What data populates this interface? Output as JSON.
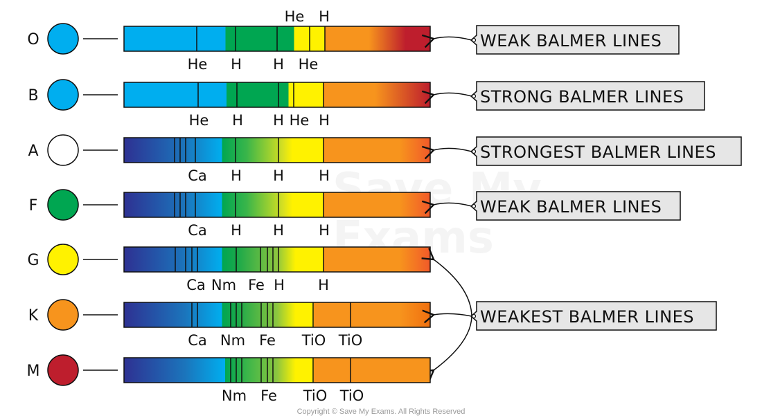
{
  "watermark": [
    "Save My",
    "Exams"
  ],
  "copyright": "Copyright © Save My Exams. All Rights Reserved",
  "colors": {
    "dark_blue": "#2e3192",
    "blue": "#00aeef",
    "green": "#00a651",
    "yellow": "#fff200",
    "orange": "#f7941d",
    "red": "#be1e2d",
    "callout_bg": "#e6e6e6"
  },
  "rows": [
    {
      "class": "O",
      "star_color": "#00aeef",
      "labels_below": [
        "He",
        "H",
        "H",
        "He"
      ],
      "labels_above": [
        "He",
        "H"
      ],
      "callout": "WEAK BALMER LINES"
    },
    {
      "class": "B",
      "star_color": "#00aeef",
      "labels_below": [
        "He",
        "H",
        "H",
        "He",
        "H"
      ],
      "labels_above": [],
      "callout": "STRONG BALMER LINES"
    },
    {
      "class": "A",
      "star_color": "#ffffff",
      "labels_below": [
        "Ca",
        "H",
        "H",
        "H"
      ],
      "labels_above": [],
      "callout": "STRONGEST BALMER LINES"
    },
    {
      "class": "F",
      "star_color": "#00a651",
      "labels_below": [
        "Ca",
        "H",
        "H",
        "H"
      ],
      "labels_above": [],
      "callout": "WEAK BALMER LINES"
    },
    {
      "class": "G",
      "star_color": "#fff200",
      "labels_below": [
        "Ca",
        "Nm",
        "Fe",
        "H",
        "H"
      ],
      "labels_above": [],
      "callout": ""
    },
    {
      "class": "K",
      "star_color": "#f7941d",
      "labels_below": [
        "Ca",
        "Nm",
        "Fe",
        "TiO",
        "TiO"
      ],
      "labels_above": [],
      "callout": "WEAKEST BALMER LINES"
    },
    {
      "class": "M",
      "star_color": "#be1e2d",
      "labels_below": [
        "Nm",
        "Fe",
        "TiO",
        "TiO"
      ],
      "labels_above": [],
      "callout": ""
    }
  ]
}
